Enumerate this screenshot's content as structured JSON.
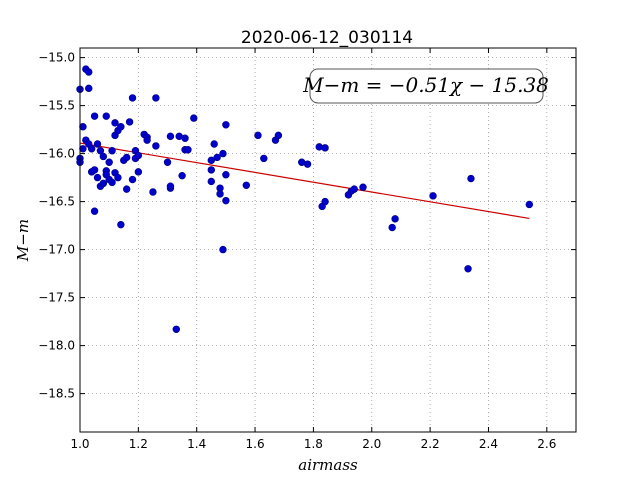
{
  "chart_data": {
    "type": "scatter",
    "title": "2020-06-12_030114",
    "xlabel": "airmass",
    "ylabel": "M−m",
    "xlim": [
      1.0,
      2.7
    ],
    "ylim": [
      -18.9,
      -14.9
    ],
    "y_inverted": true,
    "grid": true,
    "x_ticks": [
      1.0,
      1.2,
      1.4,
      1.6,
      1.8,
      2.0,
      2.2,
      2.4,
      2.6
    ],
    "x_tick_labels": [
      "1.0",
      "1.2",
      "1.4",
      "1.6",
      "1.8",
      "2.0",
      "2.2",
      "2.4",
      "2.6"
    ],
    "y_ticks": [
      -15.0,
      -15.5,
      -16.0,
      -16.5,
      -17.0,
      -17.5,
      -18.0,
      -18.5
    ],
    "y_tick_labels": [
      "−15.0",
      "−15.5",
      "−16.0",
      "−16.5",
      "−17.0",
      "−17.5",
      "−18.0",
      "−18.5"
    ],
    "annotation": "M−m = −0.51χ − 15.38",
    "marker_color": "#0000cc",
    "fit_color": "#cc0000",
    "fit_line": {
      "slope": -0.51,
      "intercept": -15.38,
      "x_range": [
        1.0,
        2.54
      ]
    },
    "points": [
      [
        1.0,
        -15.33
      ],
      [
        1.0,
        -16.05
      ],
      [
        1.0,
        -16.09
      ],
      [
        1.01,
        -15.72
      ],
      [
        1.01,
        -15.95
      ],
      [
        1.02,
        -15.12
      ],
      [
        1.02,
        -15.86
      ],
      [
        1.03,
        -15.15
      ],
      [
        1.03,
        -15.32
      ],
      [
        1.03,
        -15.9
      ],
      [
        1.04,
        -16.19
      ],
      [
        1.04,
        -15.95
      ],
      [
        1.05,
        -15.61
      ],
      [
        1.05,
        -16.17
      ],
      [
        1.05,
        -16.6
      ],
      [
        1.06,
        -16.25
      ],
      [
        1.06,
        -15.9
      ],
      [
        1.07,
        -16.34
      ],
      [
        1.07,
        -15.97
      ],
      [
        1.08,
        -16.03
      ],
      [
        1.08,
        -16.31
      ],
      [
        1.09,
        -15.61
      ],
      [
        1.09,
        -16.18
      ],
      [
        1.09,
        -16.22
      ],
      [
        1.1,
        -16.27
      ],
      [
        1.1,
        -16.09
      ],
      [
        1.11,
        -15.97
      ],
      [
        1.11,
        -16.3
      ],
      [
        1.12,
        -15.68
      ],
      [
        1.12,
        -15.81
      ],
      [
        1.12,
        -16.2
      ],
      [
        1.13,
        -15.76
      ],
      [
        1.13,
        -16.25
      ],
      [
        1.14,
        -16.74
      ],
      [
        1.14,
        -15.72
      ],
      [
        1.15,
        -16.07
      ],
      [
        1.16,
        -16.04
      ],
      [
        1.16,
        -16.37
      ],
      [
        1.17,
        -15.67
      ],
      [
        1.18,
        -16.27
      ],
      [
        1.18,
        -15.42
      ],
      [
        1.19,
        -16.05
      ],
      [
        1.19,
        -15.97
      ],
      [
        1.2,
        -16.02
      ],
      [
        1.2,
        -16.19
      ],
      [
        1.22,
        -15.8
      ],
      [
        1.23,
        -15.83
      ],
      [
        1.23,
        -15.86
      ],
      [
        1.25,
        -16.4
      ],
      [
        1.26,
        -15.42
      ],
      [
        1.26,
        -15.92
      ],
      [
        1.3,
        -16.09
      ],
      [
        1.31,
        -15.82
      ],
      [
        1.31,
        -16.36
      ],
      [
        1.31,
        -16.34
      ],
      [
        1.33,
        -17.83
      ],
      [
        1.34,
        -15.82
      ],
      [
        1.35,
        -16.23
      ],
      [
        1.36,
        -15.96
      ],
      [
        1.36,
        -15.84
      ],
      [
        1.37,
        -15.96
      ],
      [
        1.39,
        -15.63
      ],
      [
        1.45,
        -16.17
      ],
      [
        1.45,
        -16.29
      ],
      [
        1.45,
        -16.07
      ],
      [
        1.46,
        -15.9
      ],
      [
        1.47,
        -16.04
      ],
      [
        1.48,
        -16.36
      ],
      [
        1.48,
        -16.42
      ],
      [
        1.49,
        -17.0
      ],
      [
        1.49,
        -16.0
      ],
      [
        1.5,
        -15.7
      ],
      [
        1.5,
        -16.22
      ],
      [
        1.5,
        -16.49
      ],
      [
        1.57,
        -16.33
      ],
      [
        1.61,
        -15.81
      ],
      [
        1.63,
        -16.05
      ],
      [
        1.67,
        -15.86
      ],
      [
        1.68,
        -15.81
      ],
      [
        1.76,
        -16.09
      ],
      [
        1.78,
        -16.11
      ],
      [
        1.82,
        -15.93
      ],
      [
        1.83,
        -16.55
      ],
      [
        1.84,
        -16.5
      ],
      [
        1.84,
        -15.94
      ],
      [
        1.92,
        -16.43
      ],
      [
        1.93,
        -16.39
      ],
      [
        1.94,
        -16.37
      ],
      [
        1.97,
        -16.35
      ],
      [
        2.07,
        -16.77
      ],
      [
        2.08,
        -16.68
      ],
      [
        2.21,
        -16.44
      ],
      [
        2.33,
        -17.2
      ],
      [
        2.34,
        -16.26
      ],
      [
        2.54,
        -16.53
      ]
    ]
  }
}
